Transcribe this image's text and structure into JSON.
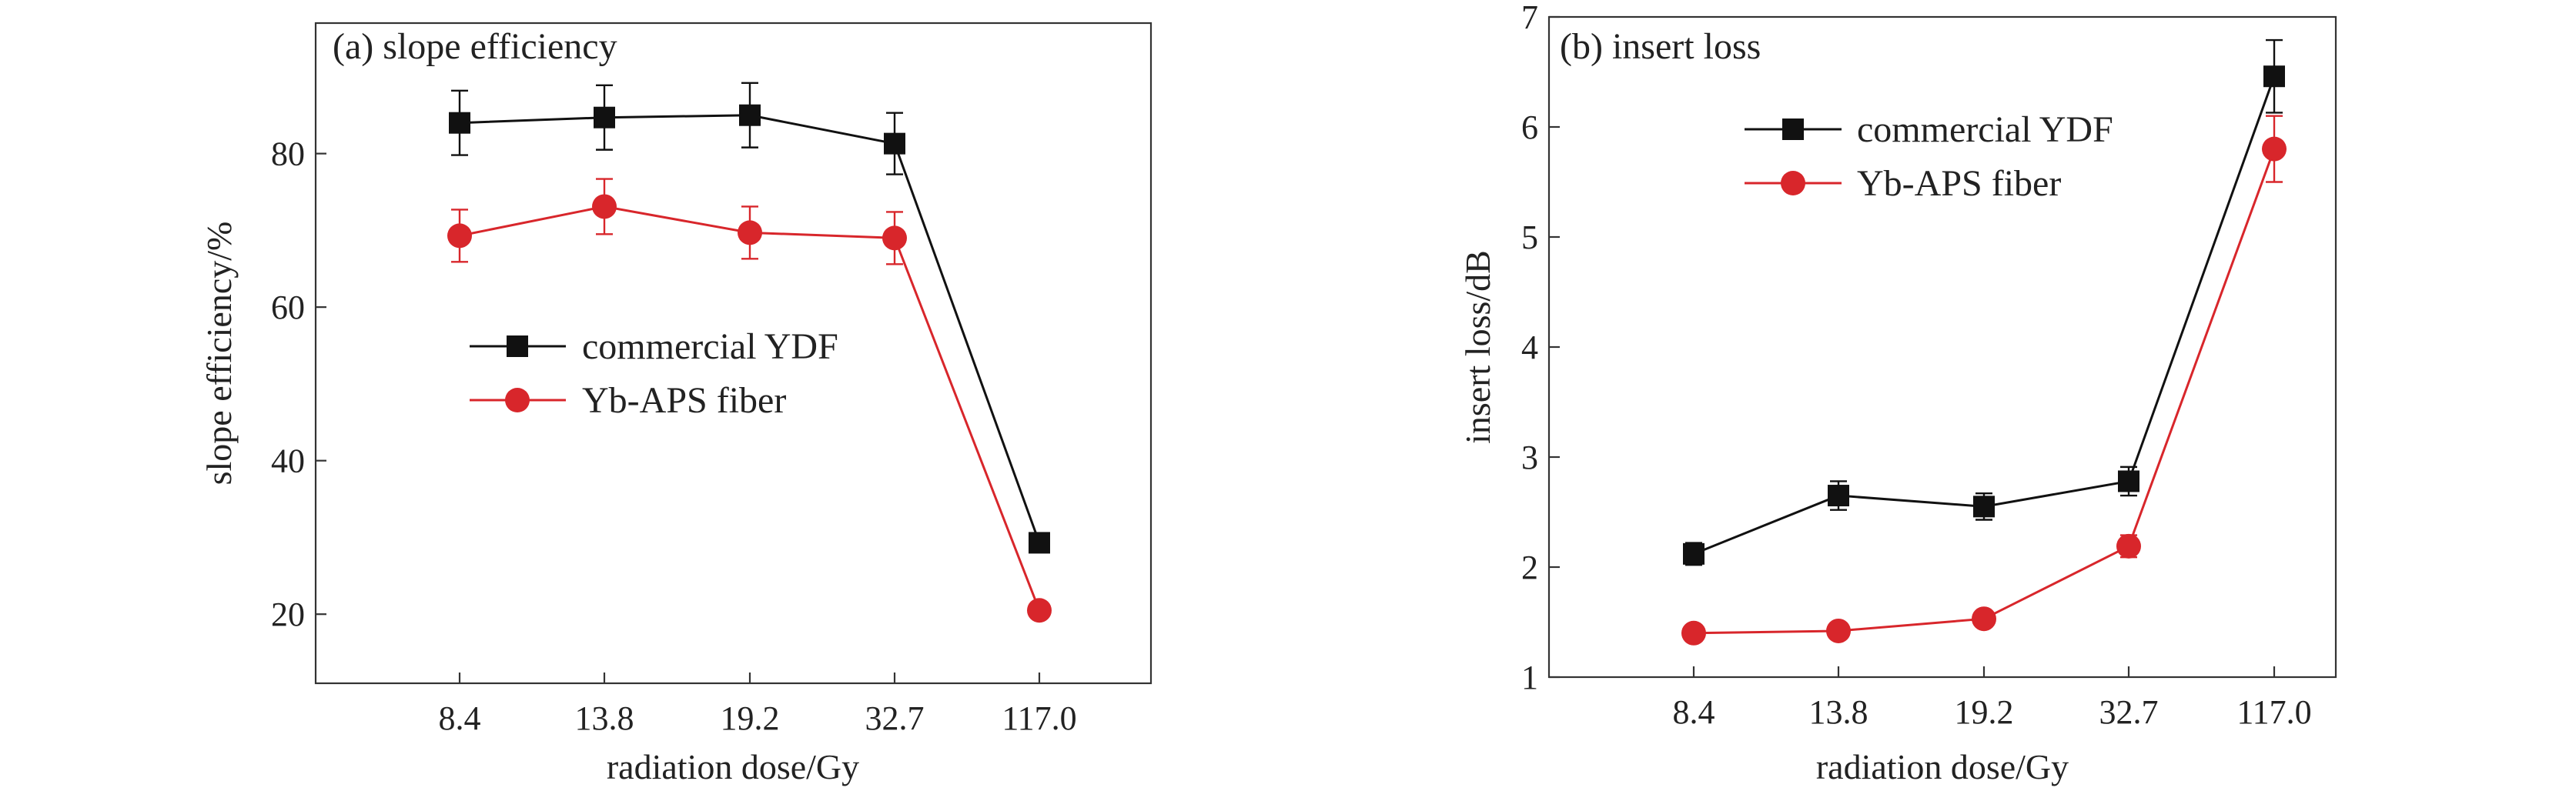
{
  "chart_data": [
    {
      "id": "a",
      "type": "line",
      "title": "(a) slope efficiency",
      "xlabel": "radiation dose/Gy",
      "ylabel": "slope efficiency/%",
      "categories": [
        "8.4",
        "13.8",
        "19.2",
        "32.7",
        "117.0"
      ],
      "yticks": [
        20,
        40,
        60,
        80
      ],
      "ylim": [
        11,
        97
      ],
      "legend_position": "center",
      "series": [
        {
          "name": "commercial YDF",
          "color": "#111111",
          "marker": "square",
          "values": [
            84.0,
            84.7,
            85.0,
            81.3,
            29.3
          ],
          "errors": [
            4.2,
            4.2,
            4.2,
            4.0,
            1.0
          ]
        },
        {
          "name": "Yb-APS fiber",
          "color": "#d8262b",
          "marker": "circle",
          "values": [
            69.3,
            73.1,
            69.7,
            69.0,
            20.5
          ],
          "errors": [
            3.4,
            3.6,
            3.4,
            3.4,
            0.6
          ]
        }
      ]
    },
    {
      "id": "b",
      "type": "line",
      "title": "(b) insert loss",
      "xlabel": "radiation dose/Gy",
      "ylabel": "insert loss/dB",
      "categories": [
        "8.4",
        "13.8",
        "19.2",
        "32.7",
        "117.0"
      ],
      "yticks": [
        1,
        2,
        3,
        4,
        5,
        6,
        7
      ],
      "ylim": [
        1,
        7
      ],
      "legend_position": "top-left",
      "series": [
        {
          "name": "commercial YDF",
          "color": "#111111",
          "marker": "square",
          "values": [
            2.12,
            2.65,
            2.55,
            2.78,
            6.46
          ],
          "errors": [
            0.1,
            0.13,
            0.12,
            0.13,
            0.33
          ]
        },
        {
          "name": "Yb-APS fiber",
          "color": "#d8262b",
          "marker": "circle",
          "values": [
            1.4,
            1.42,
            1.53,
            2.19,
            5.8
          ],
          "errors": [
            0.03,
            0.03,
            0.04,
            0.1,
            0.3
          ]
        }
      ]
    }
  ]
}
